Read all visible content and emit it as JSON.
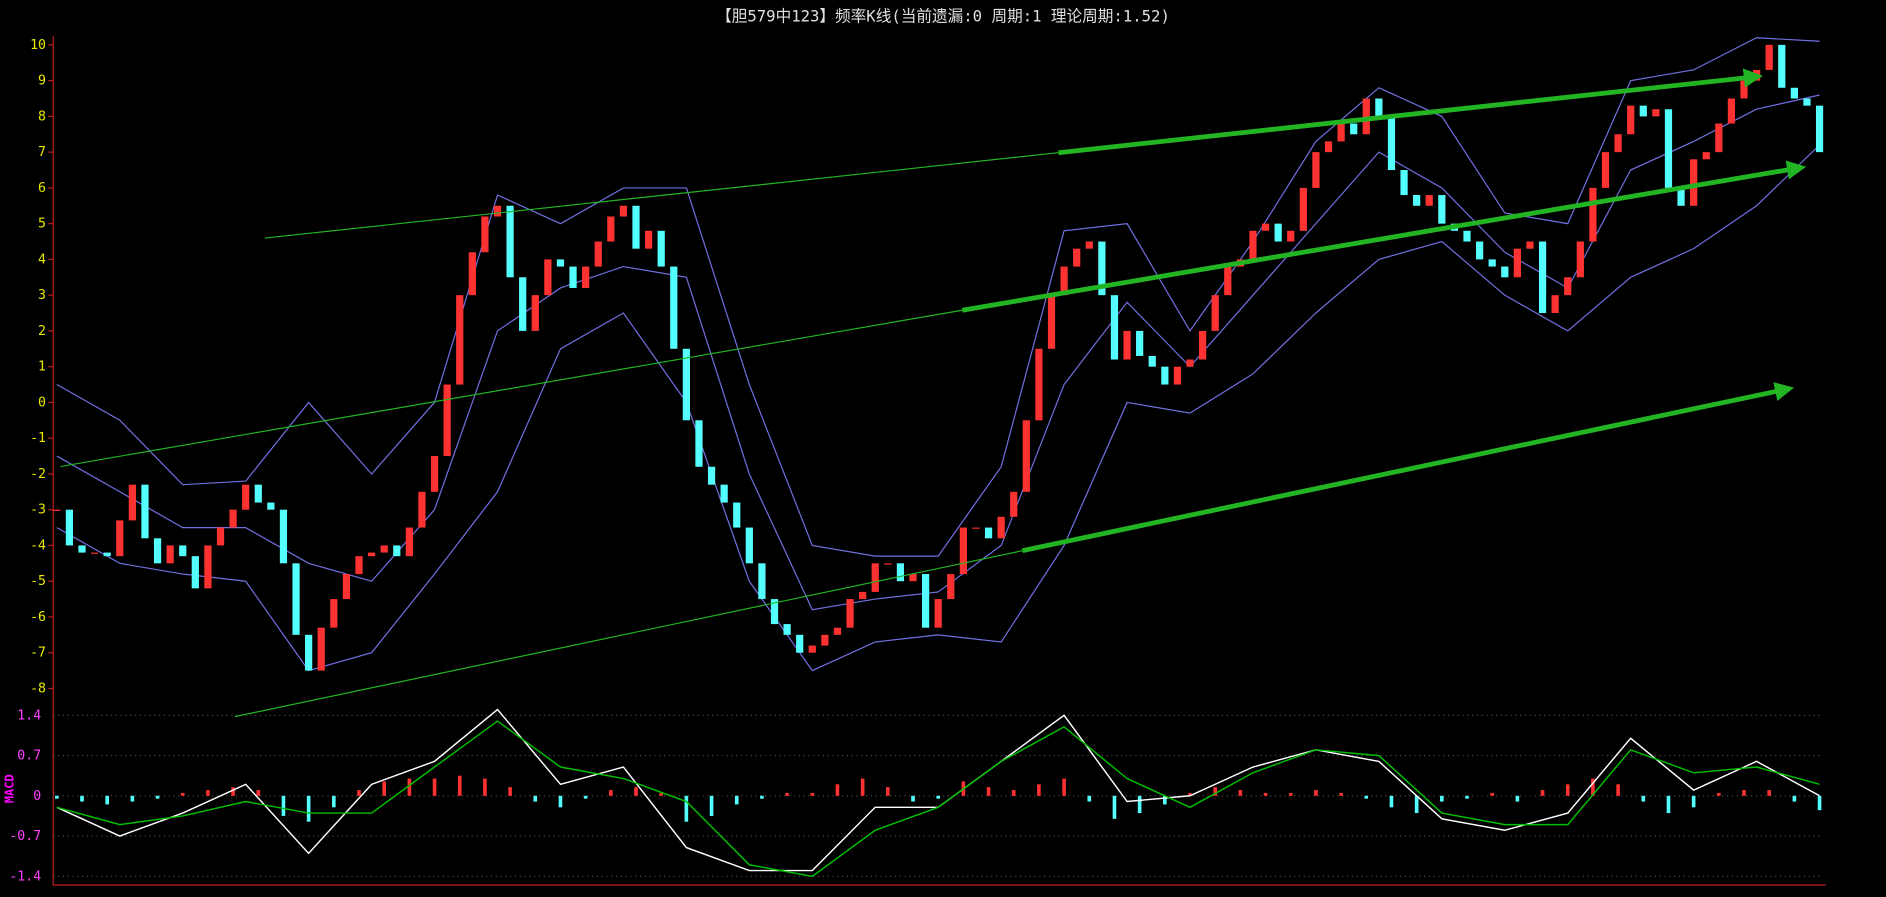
{
  "chart_data": [
    {
      "type": "candlestick",
      "title": "【胆579中123】频率K线(当前遗漏:0 周期:1 理论周期:1.52)",
      "close": [
        -3,
        -4,
        -4.2,
        -4.2,
        -4.3,
        -3.3,
        -2.3,
        -3.8,
        -4.5,
        -4,
        -4.3,
        -5.2,
        -4,
        -3.5,
        -3,
        -2.3,
        -2.8,
        -3,
        -4.5,
        -6.5,
        -7.5,
        -6.3,
        -5.5,
        -4.8,
        -4.3,
        -4.2,
        -4,
        -4.3,
        -3.5,
        -2.5,
        -1.5,
        0.5,
        3,
        4.2,
        5.2,
        5.5,
        3.5,
        2,
        3,
        4,
        3.8,
        3.2,
        3.8,
        4.5,
        5.2,
        5.5,
        4.3,
        4.8,
        3.8,
        1.5,
        -0.5,
        -1.8,
        -2.3,
        -2.8,
        -3.5,
        -4.5,
        -5.5,
        -6.2,
        -6.5,
        -7,
        -6.8,
        -6.5,
        -6.3,
        -5.5,
        -5.3,
        -4.5,
        -4.5,
        -5,
        -4.8,
        -6.3,
        -5.5,
        -4.8,
        -3.5,
        -3.5,
        -3.8,
        -3.2,
        -2.5,
        -0.5,
        1.5,
        3,
        3.8,
        4.3,
        4.5,
        3,
        1.2,
        2,
        1.3,
        1,
        0.5,
        1,
        1.2,
        2,
        3,
        3.8,
        4,
        4.8,
        5,
        4.5,
        4.8,
        6,
        7,
        7.3,
        7.8,
        7.5,
        8.5,
        8,
        6.5,
        5.8,
        5.5,
        5.8,
        5,
        4.8,
        4.5,
        4,
        3.8,
        3.5,
        4.3,
        4.5,
        2.5,
        3,
        3.5,
        4.5,
        6,
        7,
        7.5,
        8.3,
        8,
        8.2,
        6,
        5.5,
        6.8,
        7,
        7.8,
        8.5,
        9,
        9.3,
        10,
        8.8,
        8.5,
        8.3,
        7
      ],
      "up_color": "#ff3232",
      "down_color": "#54ffff",
      "bands": {
        "x": [
          0,
          5,
          10,
          15,
          20,
          25,
          30,
          35,
          40,
          45,
          50,
          55,
          60,
          65,
          70,
          75,
          80,
          85,
          90,
          95,
          100,
          105,
          110,
          115,
          120,
          125,
          130,
          135,
          140
        ],
        "upper": [
          0.5,
          -0.5,
          -2.3,
          -2.2,
          0,
          -2,
          0,
          5.8,
          5,
          6,
          6,
          0.5,
          -4,
          -4.3,
          -4.3,
          -1.8,
          4.8,
          5,
          2,
          4.5,
          7.3,
          8.8,
          8,
          5.3,
          5,
          9,
          9.3,
          10.2,
          10.1
        ],
        "middle": [
          -1.5,
          -2.5,
          -3.5,
          -3.5,
          -4.5,
          -5,
          -3,
          2,
          3.2,
          3.8,
          3.5,
          -2,
          -5.8,
          -5.5,
          -5.3,
          -4,
          0.5,
          2.8,
          1,
          3,
          5,
          7,
          6,
          4.2,
          3.2,
          6.5,
          7.3,
          8.2,
          8.6
        ],
        "lower": [
          -3.5,
          -4.5,
          -4.8,
          -5,
          -7.5,
          -7,
          -4.8,
          -2.5,
          1.5,
          2.5,
          0,
          -5,
          -7.5,
          -6.7,
          -6.5,
          -6.7,
          -4,
          0,
          -0.3,
          0.8,
          2.5,
          4,
          4.5,
          3,
          2,
          3.5,
          4.3,
          5.5,
          7.2
        ],
        "color": "#7070e0"
      },
      "ylim": [
        -8.25,
        10.3
      ],
      "yticks": [
        10,
        9,
        8,
        7,
        6,
        5,
        4,
        3,
        2,
        1,
        0,
        -1,
        -2,
        -3,
        -4,
        -5,
        -6,
        -7,
        -8
      ]
    },
    {
      "type": "macd",
      "ylabel": "MACD",
      "x": [
        0,
        5,
        10,
        15,
        20,
        25,
        30,
        35,
        40,
        45,
        50,
        55,
        60,
        65,
        70,
        75,
        80,
        85,
        90,
        95,
        100,
        105,
        110,
        115,
        120,
        125,
        130,
        135,
        140
      ],
      "dif": [
        -0.2,
        -0.7,
        -0.3,
        0.2,
        -1.0,
        0.2,
        0.6,
        1.5,
        0.2,
        0.5,
        -0.9,
        -1.3,
        -1.3,
        -0.2,
        -0.2,
        0.6,
        1.4,
        -0.1,
        0,
        0.5,
        0.8,
        0.6,
        -0.4,
        -0.6,
        -0.3,
        1.0,
        0.1,
        0.6,
        0
      ],
      "dea": [
        -0.2,
        -0.5,
        -0.35,
        -0.1,
        -0.3,
        -0.3,
        0.5,
        1.3,
        0.5,
        0.3,
        -0.1,
        -1.2,
        -1.4,
        -0.6,
        -0.2,
        0.6,
        1.2,
        0.3,
        -0.2,
        0.4,
        0.8,
        0.7,
        -0.3,
        -0.5,
        -0.5,
        0.8,
        0.4,
        0.5,
        0.2
      ],
      "dif_color": "#ffffff",
      "dea_color": "#00c000",
      "hist_x": [
        0,
        2,
        4,
        6,
        8,
        10,
        12,
        14,
        16,
        18,
        20,
        22,
        24,
        26,
        28,
        30,
        32,
        34,
        36,
        38,
        40,
        42,
        44,
        46,
        48,
        50,
        52,
        54,
        56,
        58,
        60,
        62,
        64,
        66,
        68,
        70,
        72,
        74,
        76,
        78,
        80,
        82,
        84,
        86,
        88,
        90,
        92,
        94,
        96,
        98,
        100,
        102,
        104,
        106,
        108,
        110,
        112,
        114,
        116,
        118,
        120,
        122,
        124,
        126,
        128,
        130,
        132,
        134,
        136,
        138,
        140
      ],
      "hist": [
        -0.05,
        -0.1,
        -0.15,
        -0.1,
        -0.05,
        0.05,
        0.1,
        0.15,
        0.1,
        -0.35,
        -0.45,
        -0.2,
        0.1,
        0.25,
        0.3,
        0.3,
        0.35,
        0.3,
        0.15,
        -0.1,
        -0.2,
        -0.05,
        0.1,
        0.15,
        0.05,
        -0.45,
        -0.35,
        -0.15,
        -0.05,
        0.05,
        0.05,
        0.2,
        0.3,
        0.15,
        -0.1,
        -0.05,
        0.25,
        0.15,
        0.1,
        0.2,
        0.3,
        -0.1,
        -0.4,
        -0.3,
        -0.15,
        0.05,
        0.15,
        0.1,
        0.05,
        0.05,
        0.1,
        0.05,
        -0.05,
        -0.2,
        -0.3,
        -0.1,
        -0.05,
        0.05,
        -0.1,
        0.1,
        0.2,
        0.3,
        0.2,
        -0.1,
        -0.3,
        -0.2,
        0.05,
        0.1,
        0.1,
        -0.1,
        -0.25
      ],
      "ylim": [
        -1.53,
        1.67
      ],
      "yticks": [
        1.4,
        0.7,
        0,
        -0.7,
        -1.4
      ]
    }
  ]
}
